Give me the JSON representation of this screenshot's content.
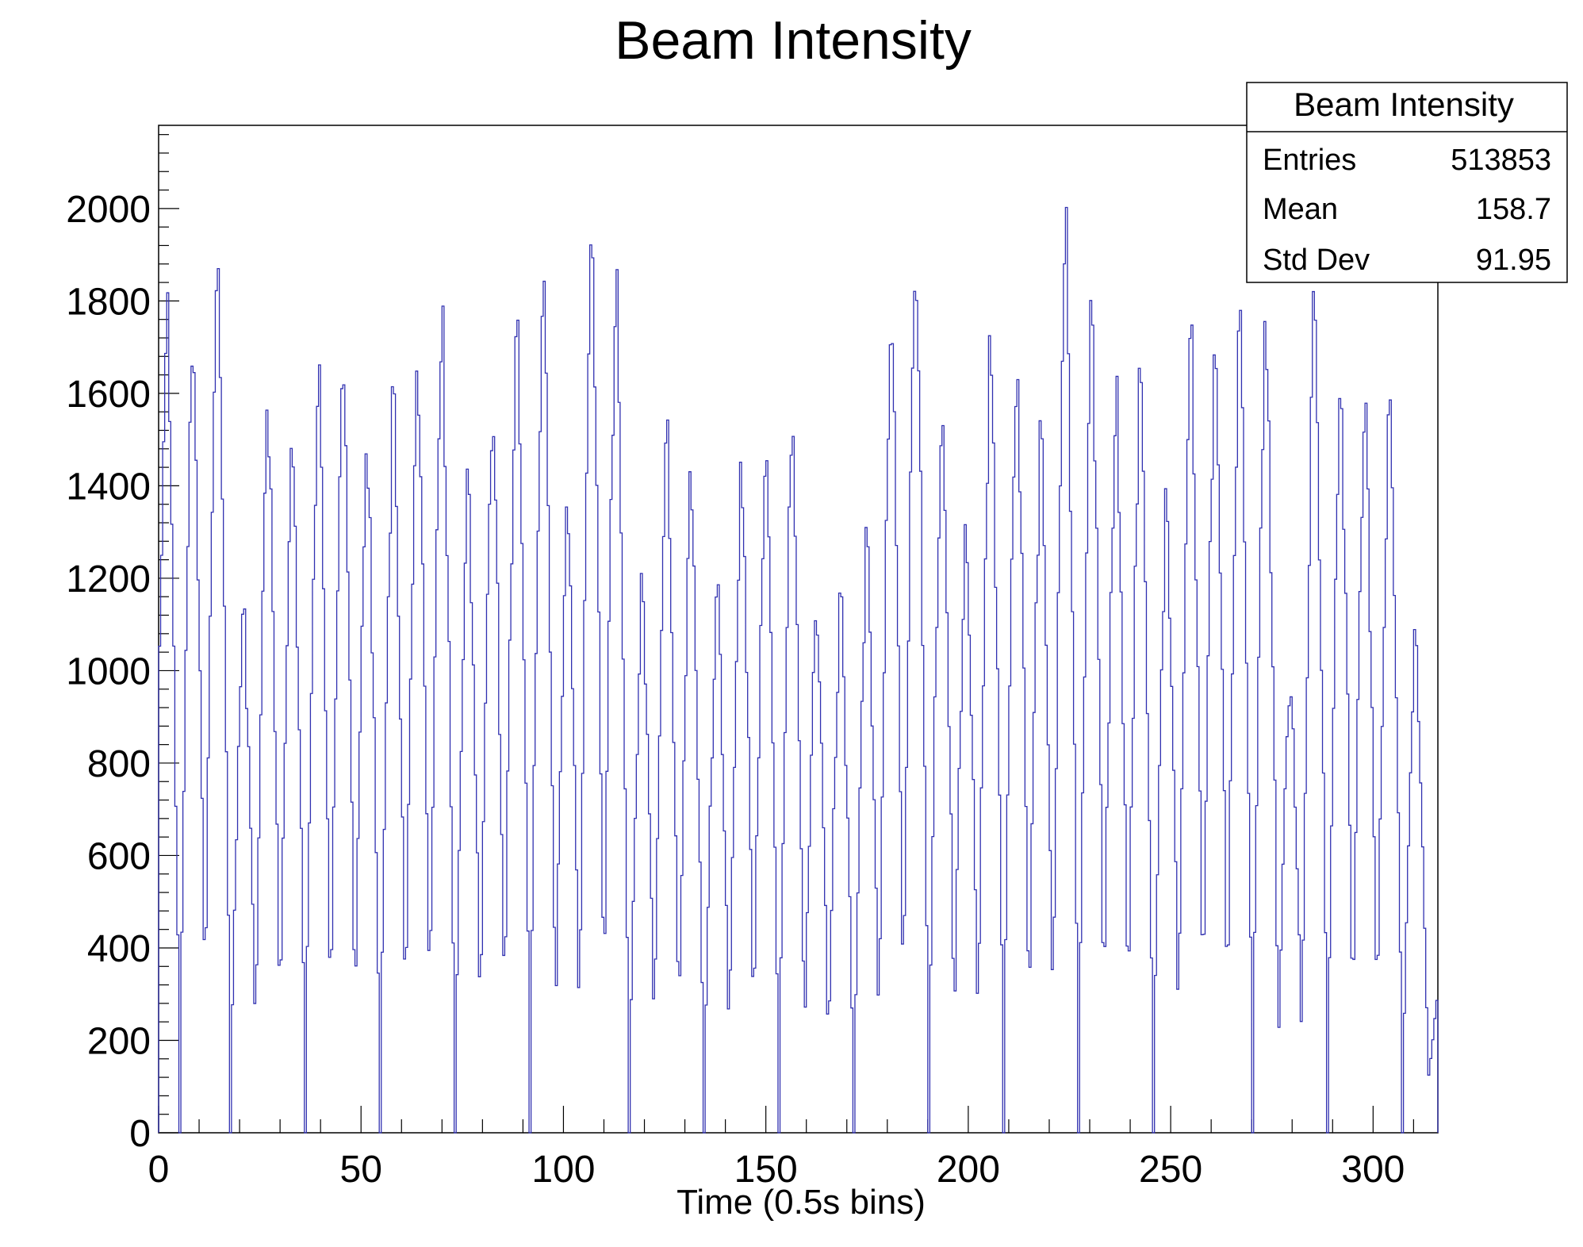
{
  "chart_data": {
    "type": "histogram",
    "title": "Beam Intensity",
    "xlabel": "Time (0.5s bins)",
    "ylabel": "",
    "xlim": [
      0,
      316
    ],
    "ylim": [
      0,
      2180
    ],
    "bin_width": 0.5,
    "x_ticks": [
      0,
      50,
      100,
      150,
      200,
      250,
      300
    ],
    "y_ticks": [
      0,
      200,
      400,
      600,
      800,
      1000,
      1200,
      1400,
      1600,
      1800,
      2000
    ],
    "line_color": "#3030b0",
    "grid": false,
    "legend": "none",
    "stats_box": {
      "title": "Beam Intensity",
      "placement": "top-right",
      "rows": [
        {
          "label": "Entries",
          "value": "513853"
        },
        {
          "label": "Mean",
          "value": "158.7"
        },
        {
          "label": "Std Dev",
          "value": "91.95"
        }
      ]
    },
    "pulses": [
      {
        "x": 2.0,
        "peak": 1860
      },
      {
        "x": 8.5,
        "peak": 1840
      },
      {
        "x": 14.5,
        "peak": 2025
      },
      {
        "x": 21.0,
        "peak": 1190
      },
      {
        "x": 27.0,
        "peak": 1640
      },
      {
        "x": 33.0,
        "peak": 1585
      },
      {
        "x": 39.5,
        "peak": 1700
      },
      {
        "x": 45.5,
        "peak": 1785
      },
      {
        "x": 51.5,
        "peak": 1575
      },
      {
        "x": 58.0,
        "peak": 1655
      },
      {
        "x": 64.0,
        "peak": 1735
      },
      {
        "x": 70.0,
        "peak": 1855
      },
      {
        "x": 76.5,
        "peak": 1470
      },
      {
        "x": 82.5,
        "peak": 1660
      },
      {
        "x": 88.5,
        "peak": 1885
      },
      {
        "x": 95.0,
        "peak": 1940
      },
      {
        "x": 101.0,
        "peak": 1450
      },
      {
        "x": 107.0,
        "peak": 2025
      },
      {
        "x": 113.0,
        "peak": 1955
      },
      {
        "x": 119.5,
        "peak": 1245
      },
      {
        "x": 125.5,
        "peak": 1590
      },
      {
        "x": 131.5,
        "peak": 1470
      },
      {
        "x": 138.0,
        "peak": 1240
      },
      {
        "x": 144.0,
        "peak": 1515
      },
      {
        "x": 150.0,
        "peak": 1560
      },
      {
        "x": 156.5,
        "peak": 1615
      },
      {
        "x": 162.5,
        "peak": 1185
      },
      {
        "x": 168.5,
        "peak": 1225
      },
      {
        "x": 175.0,
        "peak": 1340
      },
      {
        "x": 181.0,
        "peak": 1890
      },
      {
        "x": 187.0,
        "peak": 2030
      },
      {
        "x": 193.5,
        "peak": 1665
      },
      {
        "x": 199.5,
        "peak": 1385
      },
      {
        "x": 205.5,
        "peak": 1795
      },
      {
        "x": 212.0,
        "peak": 1760
      },
      {
        "x": 218.0,
        "peak": 1605
      },
      {
        "x": 224.0,
        "peak": 2070
      },
      {
        "x": 230.5,
        "peak": 1845
      },
      {
        "x": 236.5,
        "peak": 1700
      },
      {
        "x": 242.5,
        "peak": 1720
      },
      {
        "x": 249.0,
        "peak": 1430
      },
      {
        "x": 255.0,
        "peak": 1815
      },
      {
        "x": 261.0,
        "peak": 1830
      },
      {
        "x": 267.0,
        "peak": 1850
      },
      {
        "x": 273.5,
        "peak": 1860
      },
      {
        "x": 279.5,
        "peak": 1040
      },
      {
        "x": 285.5,
        "peak": 1870
      },
      {
        "x": 292.0,
        "peak": 1690
      },
      {
        "x": 298.0,
        "peak": 1640
      },
      {
        "x": 304.0,
        "peak": 1665
      },
      {
        "x": 310.5,
        "peak": 1140
      },
      {
        "x": 316.0,
        "peak": 300
      }
    ]
  }
}
